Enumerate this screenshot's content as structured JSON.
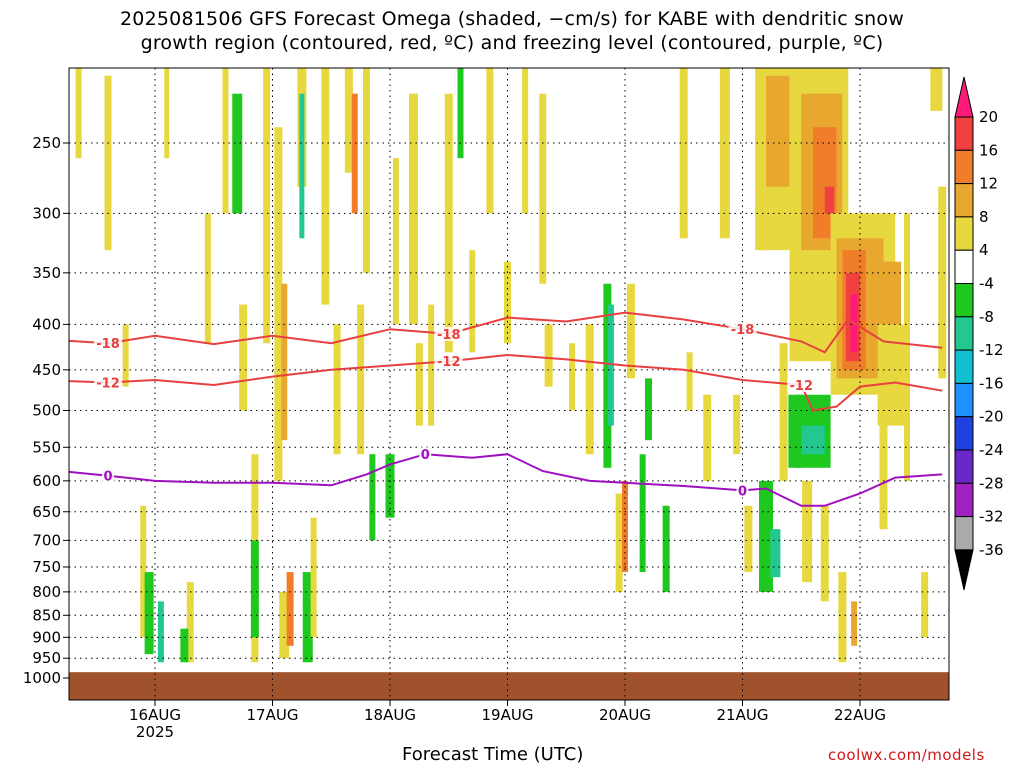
{
  "title_line1": "2025081506 GFS Forecast Omega (shaded, −cm/s) for KABE with dendritic snow",
  "title_line2": "growth region (contoured, red, ºC) and freezing level (contoured, purple, ºC)",
  "xlabel": "Forecast Time (UTC)",
  "credit": "coolwx.com/models",
  "chart_data": {
    "type": "heatmap",
    "x_ticks": [
      "16AUG",
      "17AUG",
      "18AUG",
      "19AUG",
      "20AUG",
      "21AUG",
      "22AUG"
    ],
    "x_tick_sub": "2025",
    "y_ticks": [
      250,
      300,
      350,
      400,
      450,
      500,
      550,
      600,
      650,
      700,
      750,
      800,
      850,
      900,
      950,
      1000
    ],
    "ylim": [
      1000,
      200
    ],
    "y_scale": "log",
    "grid": true,
    "colorbar": {
      "labels": [
        20,
        16,
        12,
        8,
        4,
        -4,
        -8,
        -12,
        -16,
        -20,
        -24,
        -28,
        -32,
        -36
      ],
      "colors": [
        "#ff1a7a",
        "#f04040",
        "#f07d2a",
        "#e8a830",
        "#e8d840",
        "#ffffff",
        "#1ec81e",
        "#22c890",
        "#10c0d0",
        "#1e90ff",
        "#2040e0",
        "#6a28c8",
        "#a020c0",
        "#aaaaaa",
        "#000000"
      ]
    },
    "contours": [
      {
        "label": "-18",
        "color": "#e84040",
        "points": [
          [
            15.2,
            417
          ],
          [
            15.6,
            420
          ],
          [
            16.0,
            412
          ],
          [
            16.5,
            421
          ],
          [
            17.0,
            412
          ],
          [
            17.5,
            420
          ],
          [
            18.0,
            405
          ],
          [
            18.5,
            410
          ],
          [
            19.0,
            393
          ],
          [
            19.5,
            397
          ],
          [
            20.0,
            388
          ],
          [
            20.5,
            395
          ],
          [
            21.0,
            405
          ],
          [
            21.5,
            418
          ],
          [
            21.7,
            430
          ],
          [
            21.9,
            395
          ],
          [
            22.2,
            418
          ],
          [
            22.7,
            425
          ]
        ]
      },
      {
        "label": "-12",
        "color": "#e84040",
        "points": [
          [
            15.2,
            463
          ],
          [
            15.6,
            465
          ],
          [
            16.0,
            462
          ],
          [
            16.5,
            468
          ],
          [
            17.0,
            458
          ],
          [
            17.5,
            450
          ],
          [
            18.0,
            445
          ],
          [
            18.5,
            440
          ],
          [
            19.0,
            433
          ],
          [
            19.5,
            438
          ],
          [
            20.0,
            445
          ],
          [
            20.5,
            450
          ],
          [
            21.0,
            462
          ],
          [
            21.5,
            468
          ],
          [
            21.6,
            500
          ],
          [
            21.8,
            495
          ],
          [
            22.0,
            470
          ],
          [
            22.3,
            465
          ],
          [
            22.7,
            475
          ]
        ]
      },
      {
        "label": "0",
        "color": "#a010c0",
        "points": [
          [
            15.2,
            585
          ],
          [
            15.6,
            592
          ],
          [
            16.0,
            600
          ],
          [
            16.5,
            603
          ],
          [
            17.0,
            603
          ],
          [
            17.5,
            607
          ],
          [
            17.8,
            590
          ],
          [
            18.0,
            575
          ],
          [
            18.3,
            560
          ],
          [
            18.7,
            565
          ],
          [
            19.0,
            560
          ],
          [
            19.3,
            585
          ],
          [
            19.7,
            600
          ],
          [
            20.0,
            603
          ],
          [
            20.5,
            608
          ],
          [
            21.0,
            615
          ],
          [
            21.2,
            612
          ],
          [
            21.5,
            640
          ],
          [
            21.7,
            640
          ],
          [
            22.0,
            620
          ],
          [
            22.3,
            595
          ],
          [
            22.7,
            590
          ]
        ]
      }
    ]
  }
}
